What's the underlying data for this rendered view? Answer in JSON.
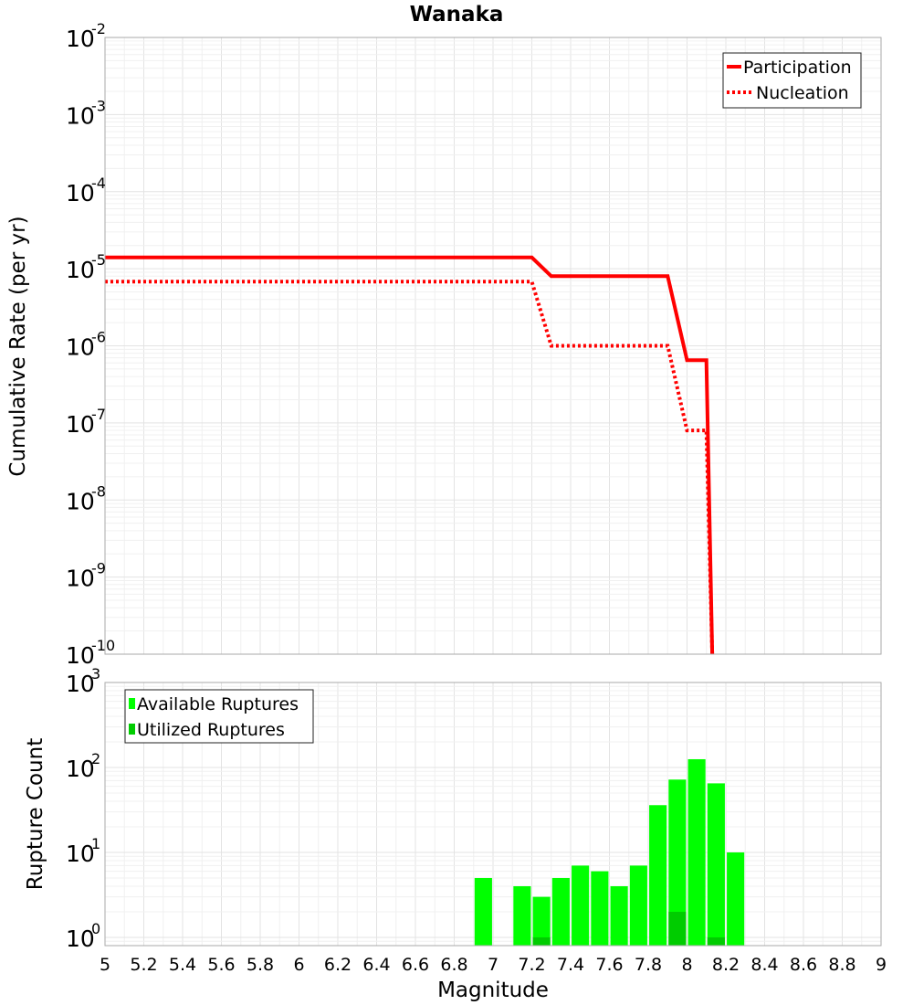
{
  "chart_data": [
    {
      "type": "line",
      "title": "Wanaka",
      "xlabel": "Magnitude",
      "ylabel": "Cumulative Rate (per yr)",
      "y_scale": "log",
      "xlim": [
        5,
        9
      ],
      "ylim": [
        1e-10,
        0.01
      ],
      "grid": true,
      "legend_position": "top-right",
      "y_tick_exponents": [
        "-2",
        "-3",
        "-4",
        "-5",
        "-6",
        "-7",
        "-8",
        "-9",
        "-10"
      ],
      "y_tick_base": "10",
      "series": [
        {
          "name": "Participation",
          "style": "solid",
          "color": "#ff0000",
          "x": [
            5.0,
            7.2,
            7.3,
            7.9,
            8.0,
            8.1,
            8.13
          ],
          "y": [
            1.4e-05,
            1.4e-05,
            8e-06,
            8e-06,
            6.5e-07,
            6.5e-07,
            1e-10
          ]
        },
        {
          "name": "Nucleation",
          "style": "dotted",
          "color": "#ff0000",
          "x": [
            5.0,
            7.2,
            7.3,
            7.9,
            8.0,
            8.1,
            8.13
          ],
          "y": [
            6.8e-06,
            6.8e-06,
            1e-06,
            1e-06,
            8e-08,
            8e-08,
            1e-10
          ]
        }
      ]
    },
    {
      "type": "bar",
      "xlabel": "Magnitude",
      "ylabel": "Rupture Count",
      "y_scale": "log",
      "xlim": [
        5,
        9
      ],
      "ylim": [
        0.8,
        1000
      ],
      "grid": true,
      "legend_position": "top-left",
      "bar_width": 0.09,
      "x_ticks": [
        "5",
        "5.2",
        "5.4",
        "5.6",
        "5.8",
        "6",
        "6.2",
        "6.4",
        "6.6",
        "6.8",
        "7",
        "7.2",
        "7.4",
        "7.6",
        "7.8",
        "8",
        "8.2",
        "8.4",
        "8.6",
        "8.8",
        "9"
      ],
      "y_tick_exponents": [
        "3",
        "2",
        "1",
        "0"
      ],
      "y_tick_base": "10",
      "series": [
        {
          "name": "Available Ruptures",
          "color": "#00ff00",
          "x": [
            6.95,
            7.15,
            7.25,
            7.35,
            7.45,
            7.55,
            7.65,
            7.75,
            7.85,
            7.95,
            8.05,
            8.15,
            8.25
          ],
          "values": [
            5,
            4,
            3,
            5,
            7,
            6,
            4,
            7,
            36,
            72,
            125,
            65,
            10
          ]
        },
        {
          "name": "Utilized Ruptures",
          "color": "#00cc00",
          "x": [
            7.25,
            7.95,
            8.15
          ],
          "values": [
            1,
            2,
            1
          ]
        }
      ]
    }
  ]
}
